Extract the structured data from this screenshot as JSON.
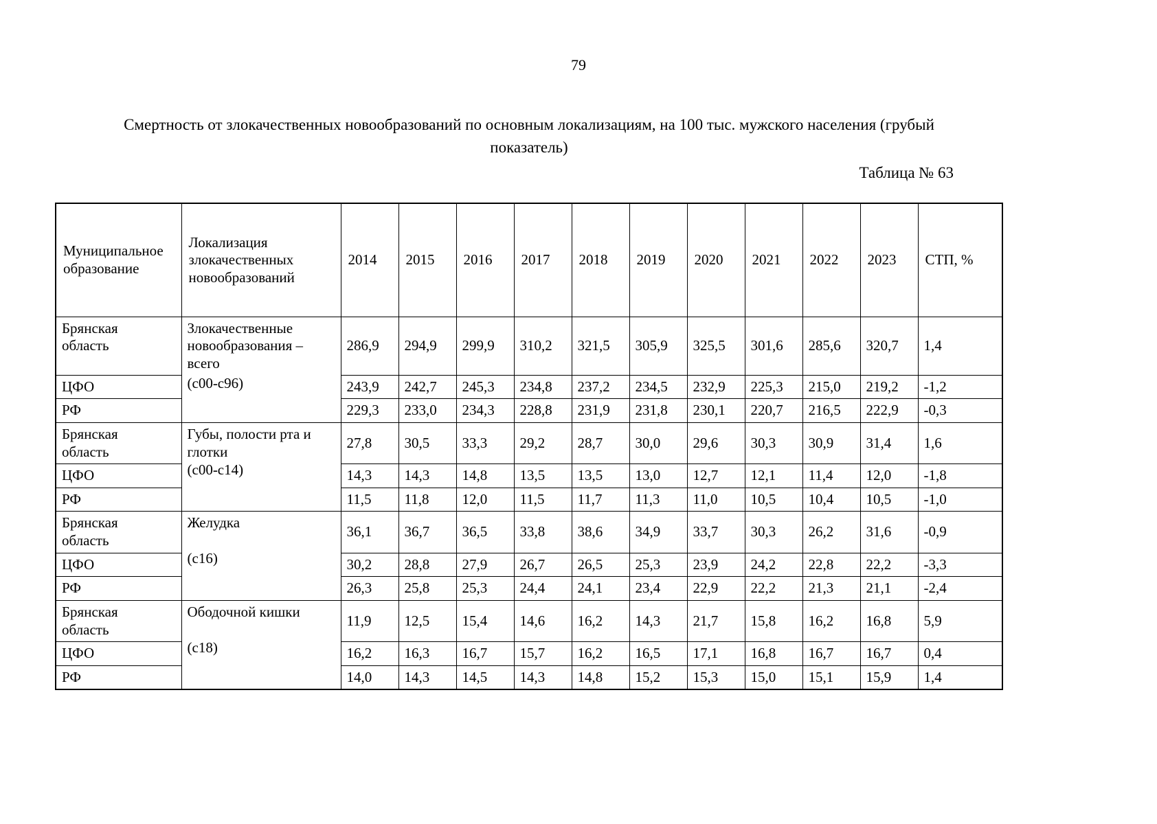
{
  "page": {
    "number": "79",
    "title": "Смертность от злокачественных новообразований по основным локализациям, на 100 тыс. мужского населения (грубый показатель)",
    "table_label": "Таблица № 63"
  },
  "table": {
    "headers": {
      "municipality": "Муниципальное образование",
      "localization": "Локализация злокачественных новообразований",
      "years": [
        "2014",
        "2015",
        "2016",
        "2017",
        "2018",
        "2019",
        "2020",
        "2021",
        "2022",
        "2023"
      ],
      "stp": "СТП, %"
    },
    "groups": [
      {
        "localization_name": "Злокачественные новообразования – всего",
        "localization_code": "(с00-с96)",
        "rows": [
          {
            "region": "Брянская область",
            "values": [
              "286,9",
              "294,9",
              "299,9",
              "310,2",
              "321,5",
              "305,9",
              "325,5",
              "301,6",
              "285,6",
              "320,7"
            ],
            "stp": "1,4"
          },
          {
            "region": "ЦФО",
            "values": [
              "243,9",
              "242,7",
              "245,3",
              "234,8",
              "237,2",
              "234,5",
              "232,9",
              "225,3",
              "215,0",
              "219,2"
            ],
            "stp": "-1,2"
          },
          {
            "region": "РФ",
            "values": [
              "229,3",
              "233,0",
              "234,3",
              "228,8",
              "231,9",
              "231,8",
              "230,1",
              "220,7",
              "216,5",
              "222,9"
            ],
            "stp": "-0,3"
          }
        ]
      },
      {
        "localization_name": "Губы, полости рта и глотки",
        "localization_code": "(с00-с14)",
        "rows": [
          {
            "region": "Брянская область",
            "values": [
              "27,8",
              "30,5",
              "33,3",
              "29,2",
              "28,7",
              "30,0",
              "29,6",
              "30,3",
              "30,9",
              "31,4"
            ],
            "stp": "1,6"
          },
          {
            "region": "ЦФО",
            "values": [
              "14,3",
              "14,3",
              "14,8",
              "13,5",
              "13,5",
              "13,0",
              "12,7",
              "12,1",
              "11,4",
              "12,0"
            ],
            "stp": "-1,8"
          },
          {
            "region": "РФ",
            "values": [
              "11,5",
              "11,8",
              "12,0",
              "11,5",
              "11,7",
              "11,3",
              "11,0",
              "10,5",
              "10,4",
              "10,5"
            ],
            "stp": "-1,0"
          }
        ]
      },
      {
        "localization_name": "Желудка",
        "localization_code": "(с16)",
        "rows": [
          {
            "region": "Брянская область",
            "values": [
              "36,1",
              "36,7",
              "36,5",
              "33,8",
              "38,6",
              "34,9",
              "33,7",
              "30,3",
              "26,2",
              "31,6"
            ],
            "stp": "-0,9"
          },
          {
            "region": "ЦФО",
            "values": [
              "30,2",
              "28,8",
              "27,9",
              "26,7",
              "26,5",
              "25,3",
              "23,9",
              "24,2",
              "22,8",
              "22,2"
            ],
            "stp": "-3,3"
          },
          {
            "region": "РФ",
            "values": [
              "26,3",
              "25,8",
              "25,3",
              "24,4",
              "24,1",
              "23,4",
              "22,9",
              "22,2",
              "21,3",
              "21,1"
            ],
            "stp": "-2,4"
          }
        ]
      },
      {
        "localization_name": "Ободочной кишки",
        "localization_code": "(с18)",
        "rows": [
          {
            "region": "Брянская область",
            "values": [
              "11,9",
              "12,5",
              "15,4",
              "14,6",
              "16,2",
              "14,3",
              "21,7",
              "15,8",
              "16,2",
              "16,8"
            ],
            "stp": "5,9"
          },
          {
            "region": "ЦФО",
            "values": [
              "16,2",
              "16,3",
              "16,7",
              "15,7",
              "16,2",
              "16,5",
              "17,1",
              "16,8",
              "16,7",
              "16,7"
            ],
            "stp": "0,4"
          },
          {
            "region": "РФ",
            "values": [
              "14,0",
              "14,3",
              "14,5",
              "14,3",
              "14,8",
              "15,2",
              "15,3",
              "15,0",
              "15,1",
              "15,9"
            ],
            "stp": "1,4"
          }
        ]
      }
    ]
  }
}
